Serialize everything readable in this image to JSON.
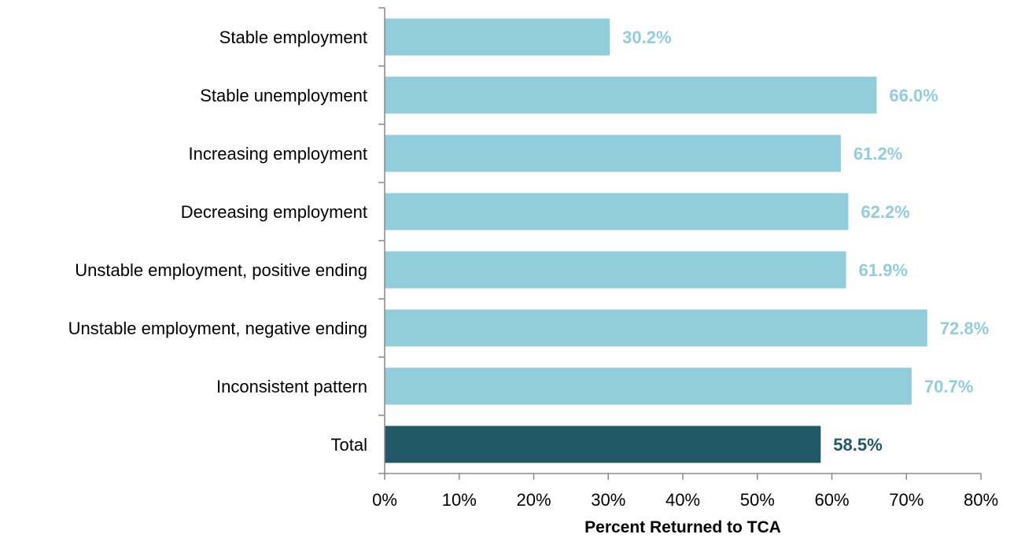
{
  "chart_data": {
    "type": "bar",
    "orientation": "horizontal",
    "categories": [
      "Stable employment",
      "Stable unemployment",
      "Increasing employment",
      "Decreasing employment",
      "Unstable employment, positive ending",
      "Unstable employment, negative ending",
      "Inconsistent pattern",
      "Total"
    ],
    "values": [
      30.2,
      66.0,
      61.2,
      62.2,
      61.9,
      72.8,
      70.7,
      58.5
    ],
    "value_labels": [
      "30.2%",
      "66.0%",
      "61.2%",
      "62.2%",
      "61.9%",
      "72.8%",
      "70.7%",
      "58.5%"
    ],
    "xlabel": "Percent Returned to TCA",
    "ylabel": "",
    "xlim": [
      0,
      80
    ],
    "xticks": [
      0,
      10,
      20,
      30,
      40,
      50,
      60,
      70,
      80
    ],
    "xtick_labels": [
      "0%",
      "10%",
      "20%",
      "30%",
      "40%",
      "50%",
      "60%",
      "70%",
      "80%"
    ],
    "grid": false,
    "colors": {
      "bar": "#92cddc",
      "bar_total": "#215968",
      "label": "#92cddc",
      "label_total": "#215968",
      "axis": "#888888"
    }
  }
}
